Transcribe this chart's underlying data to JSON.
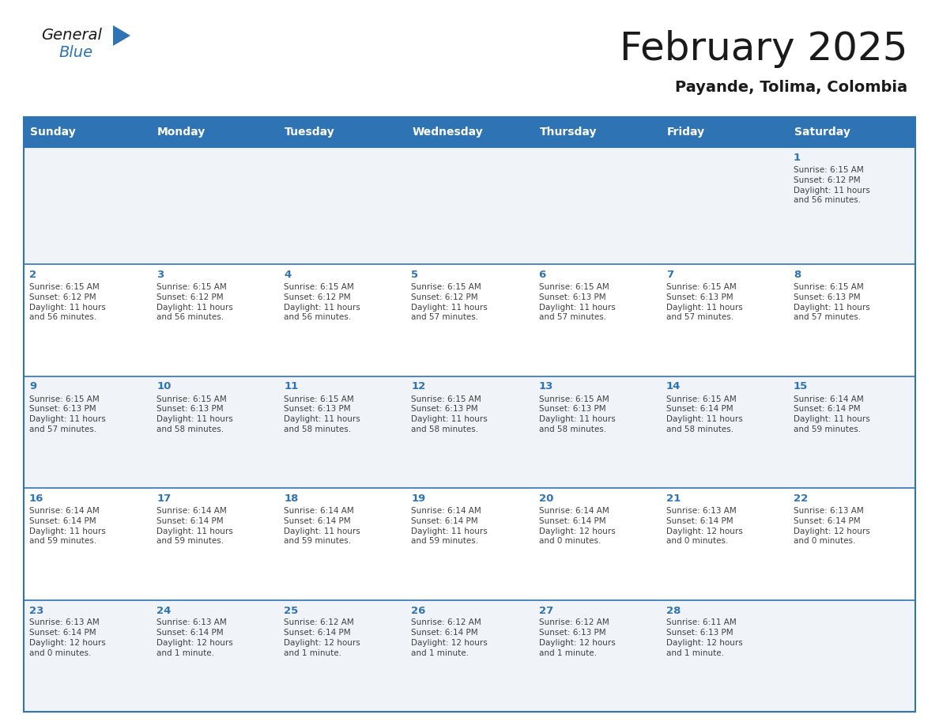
{
  "title": "February 2025",
  "subtitle": "Payande, Tolima, Colombia",
  "days_of_week": [
    "Sunday",
    "Monday",
    "Tuesday",
    "Wednesday",
    "Thursday",
    "Friday",
    "Saturday"
  ],
  "header_bg": "#2E74B5",
  "header_text_color": "#FFFFFF",
  "cell_bg_even": "#F0F4F8",
  "cell_bg_odd": "#FFFFFF",
  "cell_border_color": "#2E74B5",
  "day_number_color": "#2E74B5",
  "text_color": "#404040",
  "title_color": "#1a1a1a",
  "calendar_data": [
    [
      null,
      null,
      null,
      null,
      null,
      null,
      {
        "day": 1,
        "sunrise": "6:15 AM",
        "sunset": "6:12 PM",
        "daylight": "11 hours\nand 56 minutes."
      }
    ],
    [
      {
        "day": 2,
        "sunrise": "6:15 AM",
        "sunset": "6:12 PM",
        "daylight": "11 hours\nand 56 minutes."
      },
      {
        "day": 3,
        "sunrise": "6:15 AM",
        "sunset": "6:12 PM",
        "daylight": "11 hours\nand 56 minutes."
      },
      {
        "day": 4,
        "sunrise": "6:15 AM",
        "sunset": "6:12 PM",
        "daylight": "11 hours\nand 56 minutes."
      },
      {
        "day": 5,
        "sunrise": "6:15 AM",
        "sunset": "6:12 PM",
        "daylight": "11 hours\nand 57 minutes."
      },
      {
        "day": 6,
        "sunrise": "6:15 AM",
        "sunset": "6:13 PM",
        "daylight": "11 hours\nand 57 minutes."
      },
      {
        "day": 7,
        "sunrise": "6:15 AM",
        "sunset": "6:13 PM",
        "daylight": "11 hours\nand 57 minutes."
      },
      {
        "day": 8,
        "sunrise": "6:15 AM",
        "sunset": "6:13 PM",
        "daylight": "11 hours\nand 57 minutes."
      }
    ],
    [
      {
        "day": 9,
        "sunrise": "6:15 AM",
        "sunset": "6:13 PM",
        "daylight": "11 hours\nand 57 minutes."
      },
      {
        "day": 10,
        "sunrise": "6:15 AM",
        "sunset": "6:13 PM",
        "daylight": "11 hours\nand 58 minutes."
      },
      {
        "day": 11,
        "sunrise": "6:15 AM",
        "sunset": "6:13 PM",
        "daylight": "11 hours\nand 58 minutes."
      },
      {
        "day": 12,
        "sunrise": "6:15 AM",
        "sunset": "6:13 PM",
        "daylight": "11 hours\nand 58 minutes."
      },
      {
        "day": 13,
        "sunrise": "6:15 AM",
        "sunset": "6:13 PM",
        "daylight": "11 hours\nand 58 minutes."
      },
      {
        "day": 14,
        "sunrise": "6:15 AM",
        "sunset": "6:14 PM",
        "daylight": "11 hours\nand 58 minutes."
      },
      {
        "day": 15,
        "sunrise": "6:14 AM",
        "sunset": "6:14 PM",
        "daylight": "11 hours\nand 59 minutes."
      }
    ],
    [
      {
        "day": 16,
        "sunrise": "6:14 AM",
        "sunset": "6:14 PM",
        "daylight": "11 hours\nand 59 minutes."
      },
      {
        "day": 17,
        "sunrise": "6:14 AM",
        "sunset": "6:14 PM",
        "daylight": "11 hours\nand 59 minutes."
      },
      {
        "day": 18,
        "sunrise": "6:14 AM",
        "sunset": "6:14 PM",
        "daylight": "11 hours\nand 59 minutes."
      },
      {
        "day": 19,
        "sunrise": "6:14 AM",
        "sunset": "6:14 PM",
        "daylight": "11 hours\nand 59 minutes."
      },
      {
        "day": 20,
        "sunrise": "6:14 AM",
        "sunset": "6:14 PM",
        "daylight": "12 hours\nand 0 minutes."
      },
      {
        "day": 21,
        "sunrise": "6:13 AM",
        "sunset": "6:14 PM",
        "daylight": "12 hours\nand 0 minutes."
      },
      {
        "day": 22,
        "sunrise": "6:13 AM",
        "sunset": "6:14 PM",
        "daylight": "12 hours\nand 0 minutes."
      }
    ],
    [
      {
        "day": 23,
        "sunrise": "6:13 AM",
        "sunset": "6:14 PM",
        "daylight": "12 hours\nand 0 minutes."
      },
      {
        "day": 24,
        "sunrise": "6:13 AM",
        "sunset": "6:14 PM",
        "daylight": "12 hours\nand 1 minute."
      },
      {
        "day": 25,
        "sunrise": "6:12 AM",
        "sunset": "6:14 PM",
        "daylight": "12 hours\nand 1 minute."
      },
      {
        "day": 26,
        "sunrise": "6:12 AM",
        "sunset": "6:14 PM",
        "daylight": "12 hours\nand 1 minute."
      },
      {
        "day": 27,
        "sunrise": "6:12 AM",
        "sunset": "6:13 PM",
        "daylight": "12 hours\nand 1 minute."
      },
      {
        "day": 28,
        "sunrise": "6:11 AM",
        "sunset": "6:13 PM",
        "daylight": "12 hours\nand 1 minute."
      },
      null
    ]
  ]
}
